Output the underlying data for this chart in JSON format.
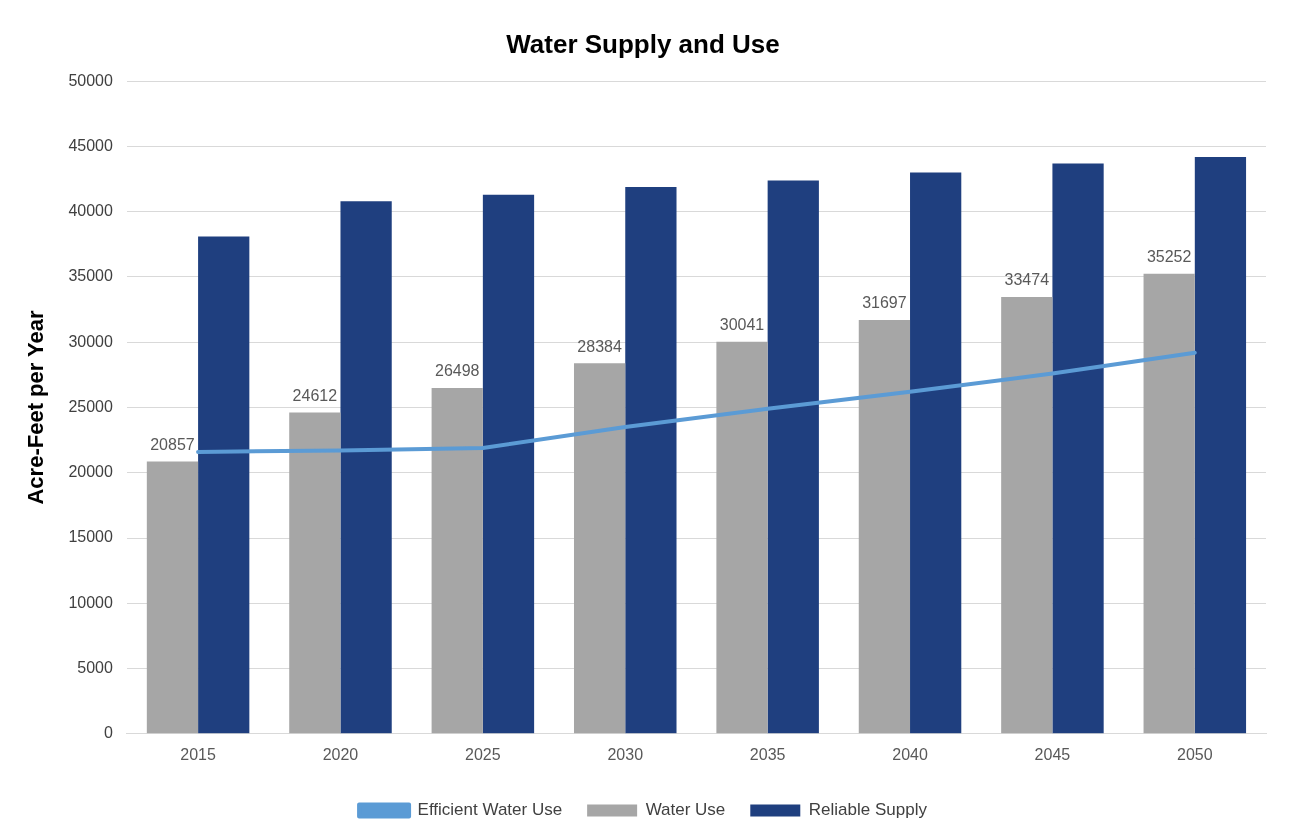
{
  "chart_data": {
    "type": "bar",
    "title": "Water Supply and Use",
    "ylabel": "Acre-Feet per Year",
    "categories": [
      "2015",
      "2020",
      "2025",
      "2030",
      "2035",
      "2040",
      "2045",
      "2050"
    ],
    "series": [
      {
        "name": "Water Use",
        "color": "#a6a6a6",
        "values": [
          20857,
          24612,
          26498,
          28384,
          30041,
          31697,
          33474,
          35252
        ],
        "value_labels": [
          "20857",
          "24612",
          "26498",
          "28384",
          "30041",
          "31697",
          "33474",
          "35252"
        ]
      },
      {
        "name": "Reliable Supply",
        "color": "#1f3f7f",
        "values": [
          38100,
          40800,
          41300,
          41900,
          42400,
          43000,
          43700,
          44200
        ]
      },
      {
        "name": "Efficient Water Use",
        "type": "line",
        "color": "#5b9bd5",
        "values": [
          21600,
          21700,
          21900,
          23500,
          24900,
          26200,
          27600,
          29200
        ]
      }
    ],
    "ylim": [
      0,
      50000
    ],
    "yticks": [
      0,
      5000,
      10000,
      15000,
      20000,
      25000,
      30000,
      35000,
      40000,
      45000,
      50000
    ],
    "grid": "y",
    "legend": "bottom",
    "marker": "none",
    "line_style": "solid"
  }
}
